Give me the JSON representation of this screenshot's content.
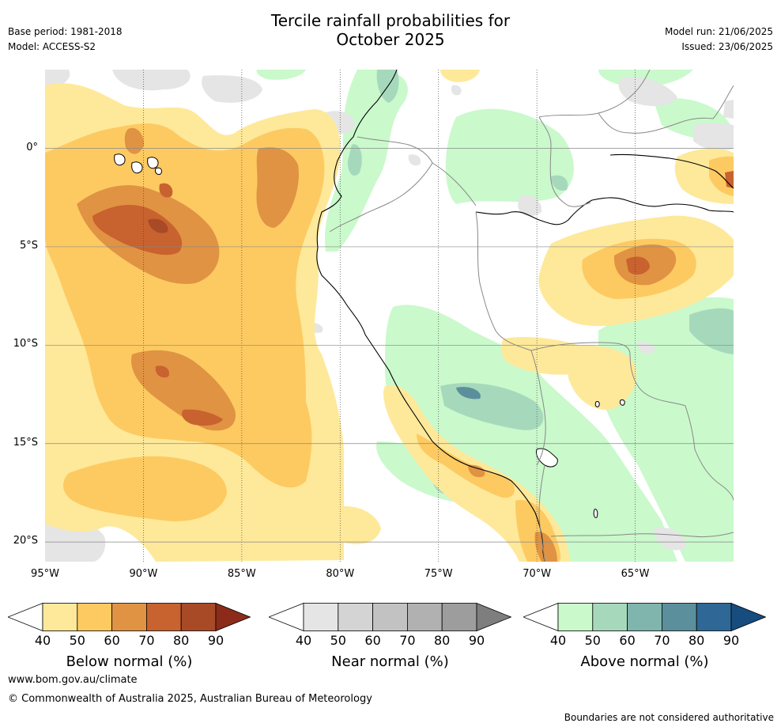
{
  "header": {
    "title_line1": "Tercile rainfall probabilities for",
    "title_line2": "October 2025",
    "base_period": "Base period: 1981-2018",
    "model": "Model: ACCESS-S2",
    "model_run": "Model run: 21/06/2025",
    "issued": "Issued: 23/06/2025"
  },
  "axes": {
    "x_ticks": [
      {
        "label": "95°W",
        "lon": -95
      },
      {
        "label": "90°W",
        "lon": -90
      },
      {
        "label": "85°W",
        "lon": -85
      },
      {
        "label": "80°W",
        "lon": -80
      },
      {
        "label": "75°W",
        "lon": -75
      },
      {
        "label": "70°W",
        "lon": -70
      },
      {
        "label": "65°W",
        "lon": -65
      }
    ],
    "y_ticks": [
      {
        "label": "0°",
        "lat": 0
      },
      {
        "label": "5°S",
        "lat": -5
      },
      {
        "label": "10°S",
        "lat": -10
      },
      {
        "label": "15°S",
        "lat": -15
      },
      {
        "label": "20°S",
        "lat": -20
      }
    ],
    "lon_range": [
      -95,
      -60
    ],
    "lat_range": [
      -21,
      4
    ]
  },
  "legends": {
    "below": {
      "label": "Below normal (%)",
      "colors": [
        "#fee99a",
        "#fdca62",
        "#e09342",
        "#c8622f",
        "#a84a26",
        "#8c2b19"
      ],
      "ticks": [
        "40",
        "50",
        "60",
        "70",
        "80",
        "90"
      ]
    },
    "near": {
      "label": "Near normal (%)",
      "colors": [
        "#e5e5e5",
        "#d4d4d4",
        "#c2c2c2",
        "#b1b1b1",
        "#9d9d9d",
        "#7e7e7e"
      ],
      "ticks": [
        "40",
        "50",
        "60",
        "70",
        "80",
        "90"
      ]
    },
    "above": {
      "label": "Above normal (%)",
      "colors": [
        "#caf9cc",
        "#a6d9bc",
        "#80b5ad",
        "#5b8f9b",
        "#2f6797",
        "#174c7f"
      ],
      "ticks": [
        "40",
        "50",
        "60",
        "70",
        "80",
        "90"
      ]
    }
  },
  "footer": {
    "url": "www.bom.gov.au/climate",
    "copyright": "© Commonwealth of Australia 2025, Australian Bureau of Meteorology",
    "disclaimer": "Boundaries are not considered authoritative"
  }
}
